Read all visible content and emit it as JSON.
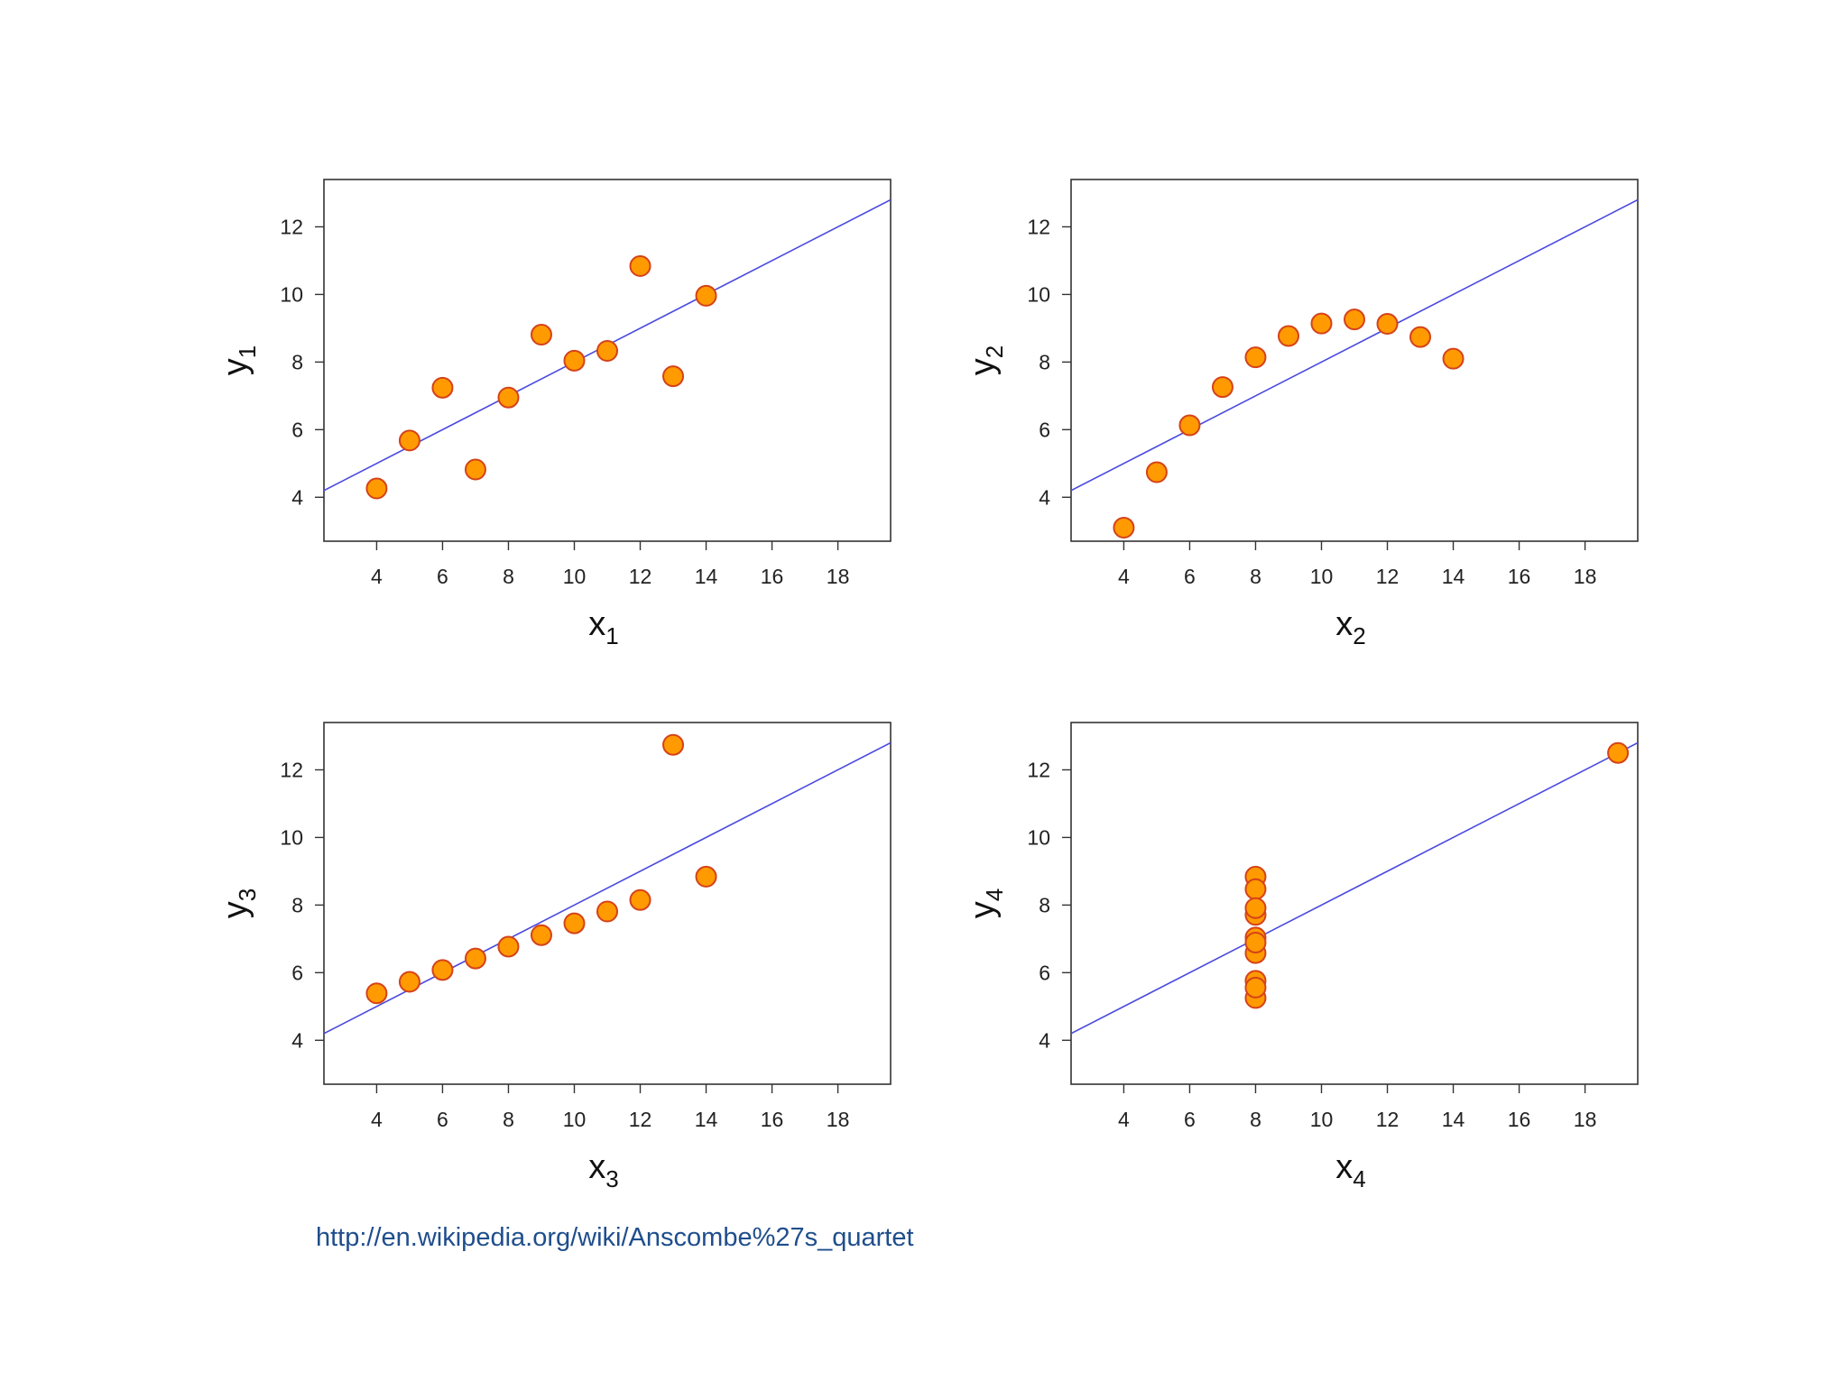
{
  "source_link": "http://en.wikipedia.org/wiki/Anscombe%27s_quartet",
  "colors": {
    "point_fill": "#ff9a00",
    "point_stroke": "#d4421a",
    "fit_line": "#4a4ae0",
    "frame": "#333333"
  },
  "chart_data": [
    {
      "type": "scatter",
      "xlabel": "x",
      "xlabel_sub": "1",
      "ylabel": "y",
      "ylabel_sub": "1",
      "xlim": [
        2.4,
        19.6
      ],
      "ylim": [
        2.7,
        13.4
      ],
      "xticks": [
        4,
        6,
        8,
        10,
        12,
        14,
        16,
        18
      ],
      "yticks": [
        4,
        6,
        8,
        10,
        12
      ],
      "fit_line": {
        "intercept": 3.0,
        "slope": 0.5
      },
      "points": [
        [
          10,
          8.04
        ],
        [
          8,
          6.95
        ],
        [
          13,
          7.58
        ],
        [
          9,
          8.81
        ],
        [
          11,
          8.33
        ],
        [
          14,
          9.96
        ],
        [
          6,
          7.24
        ],
        [
          4,
          4.26
        ],
        [
          12,
          10.84
        ],
        [
          7,
          4.82
        ],
        [
          5,
          5.68
        ]
      ]
    },
    {
      "type": "scatter",
      "xlabel": "x",
      "xlabel_sub": "2",
      "ylabel": "y",
      "ylabel_sub": "2",
      "xlim": [
        2.4,
        19.6
      ],
      "ylim": [
        2.7,
        13.4
      ],
      "xticks": [
        4,
        6,
        8,
        10,
        12,
        14,
        16,
        18
      ],
      "yticks": [
        4,
        6,
        8,
        10,
        12
      ],
      "fit_line": {
        "intercept": 3.0,
        "slope": 0.5
      },
      "points": [
        [
          10,
          9.14
        ],
        [
          8,
          8.14
        ],
        [
          13,
          8.74
        ],
        [
          9,
          8.77
        ],
        [
          11,
          9.26
        ],
        [
          14,
          8.1
        ],
        [
          6,
          6.13
        ],
        [
          4,
          3.1
        ],
        [
          12,
          9.13
        ],
        [
          7,
          7.26
        ],
        [
          5,
          4.74
        ]
      ]
    },
    {
      "type": "scatter",
      "xlabel": "x",
      "xlabel_sub": "3",
      "ylabel": "y",
      "ylabel_sub": "3",
      "xlim": [
        2.4,
        19.6
      ],
      "ylim": [
        2.7,
        13.4
      ],
      "xticks": [
        4,
        6,
        8,
        10,
        12,
        14,
        16,
        18
      ],
      "yticks": [
        4,
        6,
        8,
        10,
        12
      ],
      "fit_line": {
        "intercept": 3.0,
        "slope": 0.5
      },
      "points": [
        [
          10,
          7.46
        ],
        [
          8,
          6.77
        ],
        [
          13,
          12.74
        ],
        [
          9,
          7.11
        ],
        [
          11,
          7.81
        ],
        [
          14,
          8.84
        ],
        [
          6,
          6.08
        ],
        [
          4,
          5.39
        ],
        [
          12,
          8.15
        ],
        [
          7,
          6.42
        ],
        [
          5,
          5.73
        ]
      ]
    },
    {
      "type": "scatter",
      "xlabel": "x",
      "xlabel_sub": "4",
      "ylabel": "y",
      "ylabel_sub": "4",
      "xlim": [
        2.4,
        19.6
      ],
      "ylim": [
        2.7,
        13.4
      ],
      "xticks": [
        4,
        6,
        8,
        10,
        12,
        14,
        16,
        18
      ],
      "yticks": [
        4,
        6,
        8,
        10,
        12
      ],
      "fit_line": {
        "intercept": 3.0,
        "slope": 0.5
      },
      "points": [
        [
          8,
          6.58
        ],
        [
          8,
          5.76
        ],
        [
          8,
          7.71
        ],
        [
          8,
          8.84
        ],
        [
          8,
          8.47
        ],
        [
          8,
          7.04
        ],
        [
          8,
          5.25
        ],
        [
          19,
          12.5
        ],
        [
          8,
          5.56
        ],
        [
          8,
          7.91
        ],
        [
          8,
          6.89
        ]
      ]
    }
  ]
}
